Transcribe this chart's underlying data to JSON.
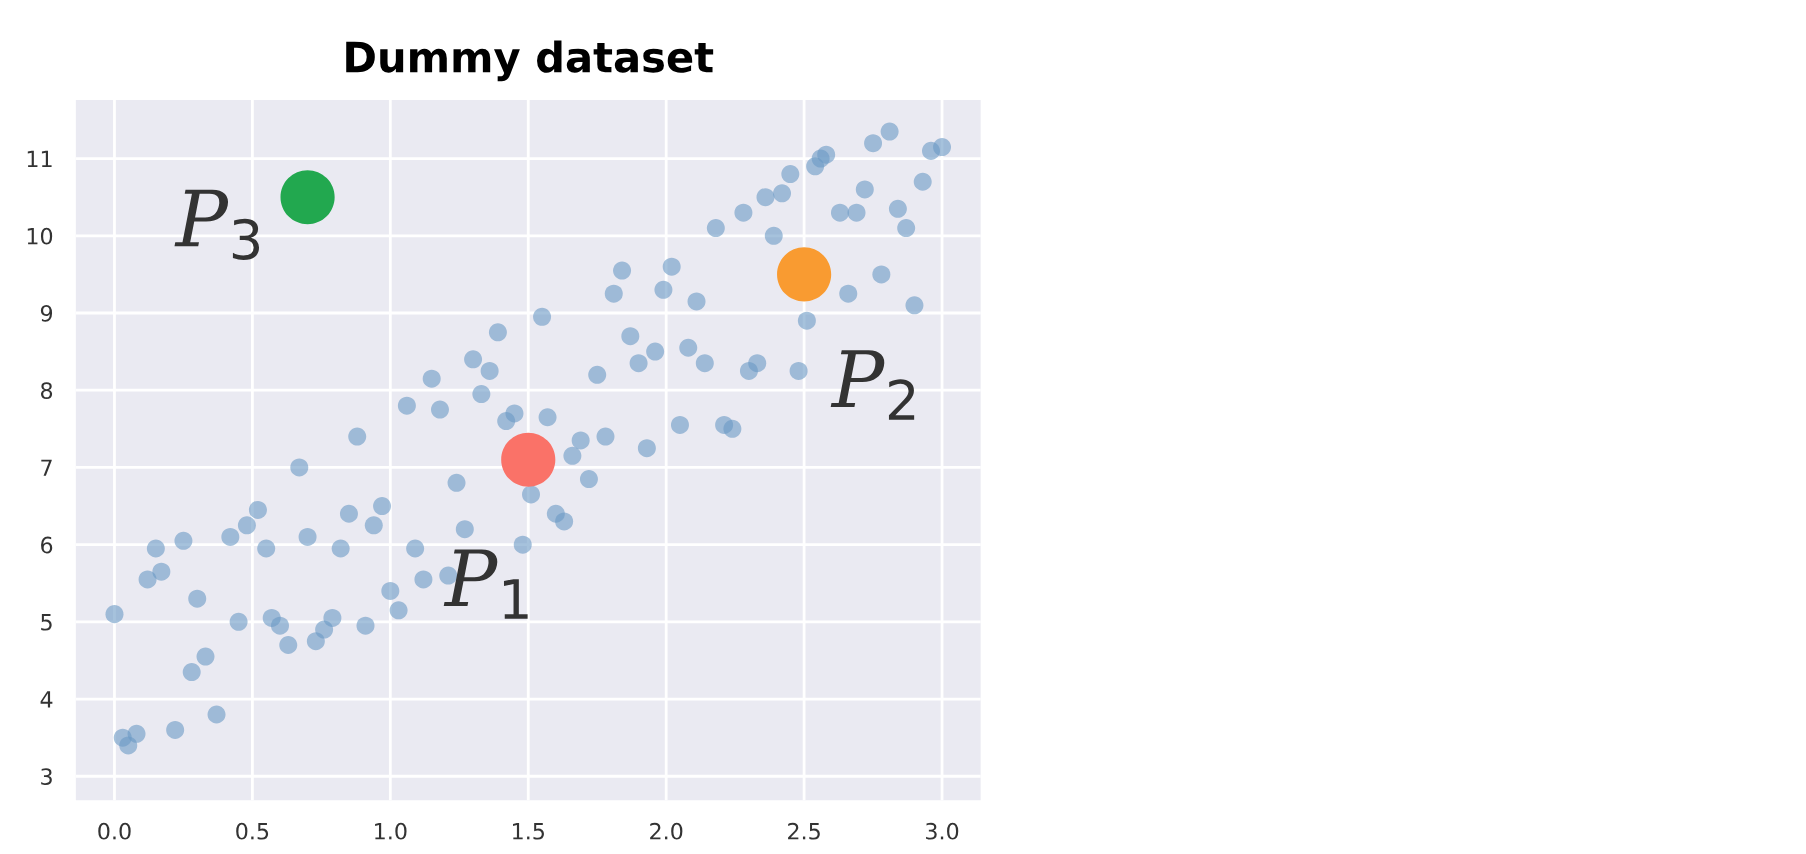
{
  "chart_data": {
    "type": "scatter",
    "title": "Dummy dataset",
    "xlim": [
      -0.14,
      3.14
    ],
    "ylim": [
      2.69,
      11.76
    ],
    "xticks": [
      {
        "value": 0,
        "label": "0.0"
      },
      {
        "value": 0.5,
        "label": "0.5"
      },
      {
        "value": 1,
        "label": "1.0"
      },
      {
        "value": 1.5,
        "label": "1.5"
      },
      {
        "value": 2,
        "label": "2.0"
      },
      {
        "value": 2.5,
        "label": "2.5"
      },
      {
        "value": 3,
        "label": "3.0"
      }
    ],
    "yticks": [
      3,
      4,
      5,
      6,
      7,
      8,
      9,
      10,
      11
    ],
    "grid": true,
    "marker": "circle",
    "series": [
      {
        "color": "#6a9ac4",
        "x": [
          0.0,
          0.03,
          0.05,
          0.08,
          0.12,
          0.15,
          0.17,
          0.22,
          0.25,
          0.28,
          0.3,
          0.33,
          0.37,
          0.42,
          0.45,
          0.48,
          0.52,
          0.55,
          0.57,
          0.6,
          0.63,
          0.67,
          0.7,
          0.73,
          0.76,
          0.79,
          0.82,
          0.85,
          0.88,
          0.91,
          0.94,
          0.97,
          1.0,
          1.03,
          1.06,
          1.09,
          1.12,
          1.15,
          1.18,
          1.21,
          1.24,
          1.27,
          1.3,
          1.33,
          1.36,
          1.39,
          1.42,
          1.45,
          1.48,
          1.51,
          1.55,
          1.57,
          1.6,
          1.63,
          1.66,
          1.69,
          1.72,
          1.75,
          1.78,
          1.81,
          1.84,
          1.87,
          1.9,
          1.93,
          1.96,
          1.99,
          2.02,
          2.05,
          2.08,
          2.11,
          2.14,
          2.18,
          2.21,
          2.24,
          2.28,
          2.3,
          2.33,
          2.36,
          2.39,
          2.42,
          2.45,
          2.48,
          2.51,
          2.54,
          2.56,
          2.58,
          2.63,
          2.66,
          2.69,
          2.72,
          2.75,
          2.78,
          2.81,
          2.84,
          2.87,
          2.9,
          2.93,
          2.96,
          3.0
        ],
        "values": [
          5.1,
          3.5,
          3.4,
          3.55,
          5.55,
          5.95,
          5.65,
          3.6,
          6.05,
          4.35,
          5.3,
          4.55,
          3.8,
          6.1,
          5.0,
          6.25,
          6.45,
          5.95,
          5.05,
          4.95,
          4.7,
          7.0,
          6.1,
          4.75,
          4.9,
          5.05,
          5.95,
          6.4,
          7.4,
          4.95,
          6.25,
          6.5,
          5.4,
          5.15,
          7.8,
          5.95,
          5.55,
          8.15,
          7.75,
          5.6,
          6.8,
          6.2,
          8.4,
          7.95,
          8.25,
          8.75,
          7.6,
          7.7,
          6.0,
          6.65,
          8.95,
          7.65,
          6.4,
          6.3,
          7.15,
          7.35,
          6.85,
          8.2,
          7.4,
          9.25,
          9.55,
          8.7,
          8.35,
          7.25,
          8.5,
          9.3,
          9.6,
          7.55,
          8.55,
          9.15,
          8.35,
          10.1,
          7.55,
          7.5,
          10.3,
          8.25,
          8.35,
          10.5,
          10.0,
          10.55,
          10.8,
          8.25,
          8.9,
          10.9,
          11.0,
          11.05,
          10.3,
          9.25,
          10.3,
          10.6,
          11.2,
          9.5,
          11.35,
          10.35,
          10.1,
          9.1,
          10.7,
          11.1,
          11.15
        ]
      },
      {
        "x": [
          1.5,
          2.5,
          0.7
        ],
        "values": [
          7.1,
          9.5,
          10.5
        ],
        "colors": [
          "#fa7268",
          "#f99b31",
          "#22a84f"
        ]
      }
    ],
    "annotations": [
      {
        "text": "P$_{1}$",
        "x": 1.5,
        "y": 7.1
      },
      {
        "text": "P$_{2}$",
        "x": 2.5,
        "y": 9.5
      },
      {
        "text": "P$_{3}$",
        "x": 0.7,
        "y": 10.5
      }
    ]
  }
}
